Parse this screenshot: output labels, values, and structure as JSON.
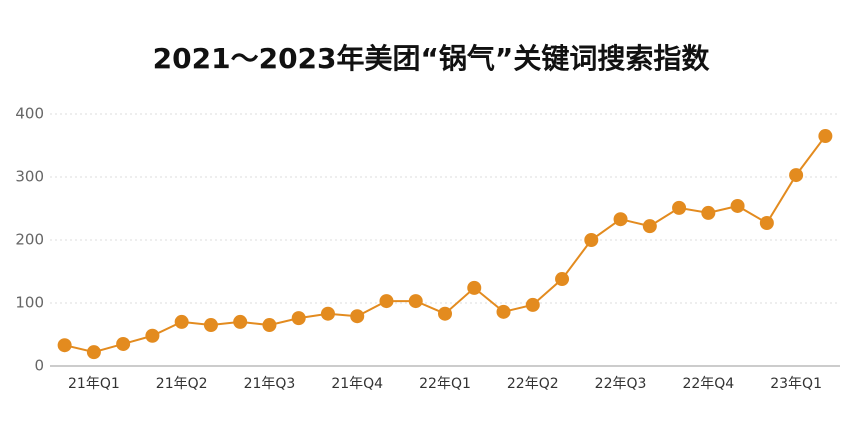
{
  "chart_data": {
    "type": "line",
    "title": "2021～2023年美团“锅气”关键词搜索指数",
    "categories": [
      null,
      "21年Q1",
      null,
      null,
      "21年Q2",
      null,
      null,
      "21年Q3",
      null,
      null,
      "21年Q4",
      null,
      null,
      "22年Q1",
      null,
      null,
      "22年Q2",
      null,
      null,
      "22年Q3",
      null,
      null,
      "22年Q4",
      null,
      null,
      "23年Q1",
      null
    ],
    "values": [
      33,
      22,
      35,
      48,
      70,
      65,
      70,
      65,
      76,
      83,
      79,
      103,
      103,
      83,
      124,
      86,
      97,
      138,
      200,
      233,
      222,
      251,
      243,
      254,
      227,
      303,
      365
    ],
    "color": "#e38b1f",
    "ylim": [
      0,
      400
    ],
    "yticks": [
      0,
      100,
      200,
      300,
      400
    ],
    "grid": true
  }
}
